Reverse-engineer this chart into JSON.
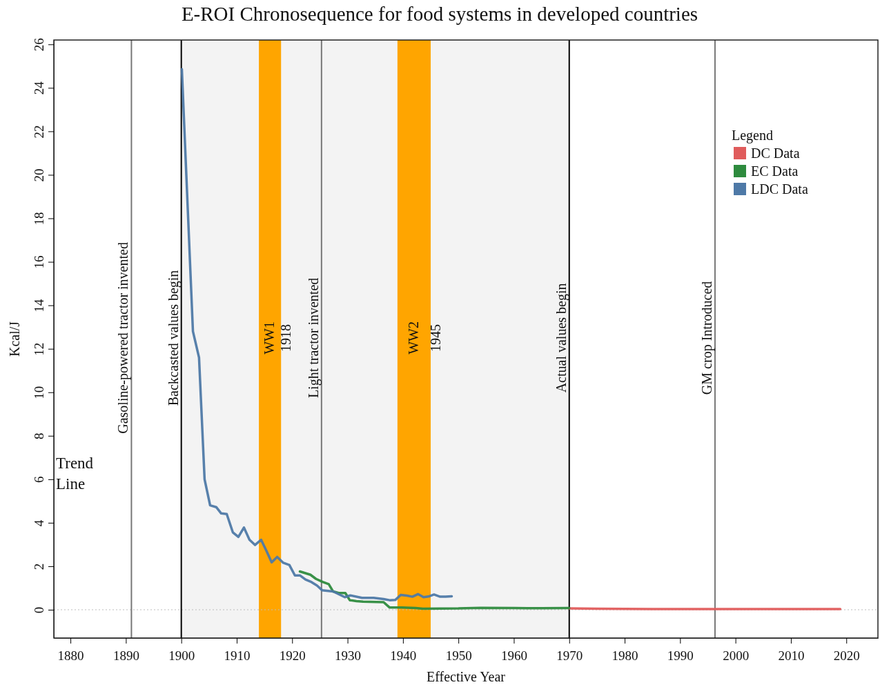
{
  "chart_data": {
    "type": "line",
    "title": "E-ROI Chronosequence for food systems in developed countries",
    "xlabel": "Effective Year",
    "ylabel": "Kcal/J",
    "xlim": [
      1877,
      2025.7
    ],
    "xticks": [
      1880,
      1890,
      1900,
      1910,
      1920,
      1930,
      1940,
      1950,
      1960,
      1970,
      1980,
      1990,
      2000,
      2010,
      2020
    ],
    "ylim": [
      -1.3,
      26.2
    ],
    "yticks": [
      0,
      2,
      4,
      6,
      8,
      10,
      12,
      14,
      16,
      18,
      20,
      22,
      24,
      26
    ],
    "grid": false,
    "legend": "top right",
    "legend_title": "Legend",
    "line_style": "solid",
    "marker": "none",
    "series": [
      {
        "name": "DC Data",
        "color": "#e05c5c",
        "x": [
          1970,
          1975,
          1980,
          1985,
          1990,
          1995,
          2000,
          2005,
          2010,
          2015,
          2018.9
        ],
        "values": [
          0.06,
          0.05,
          0.04,
          0.03,
          0.03,
          0.03,
          0.03,
          0.03,
          0.03,
          0.03,
          0.03
        ]
      },
      {
        "name": "EC Data",
        "color": "#2e8b3e",
        "x": [
          1921.4,
          1923.3,
          1924.3,
          1925.5,
          1926.6,
          1927.4,
          1928.4,
          1929.6,
          1930.4,
          1931.6,
          1932.8,
          1936.5,
          1937.6,
          1939.8,
          1942.3,
          1943.6,
          1950,
          1954,
          1960,
          1965,
          1970
        ],
        "values": [
          1.76,
          1.61,
          1.42,
          1.28,
          1.18,
          0.84,
          0.77,
          0.77,
          0.44,
          0.4,
          0.37,
          0.35,
          0.1,
          0.1,
          0.08,
          0.05,
          0.06,
          0.09,
          0.08,
          0.07,
          0.08
        ]
      },
      {
        "name": "LDC Data",
        "color": "#4e79a7",
        "x": [
          1900.1,
          1902.1,
          1903.2,
          1904.2,
          1905.2,
          1906.3,
          1907.2,
          1908.2,
          1909.3,
          1910.3,
          1911.3,
          1912.3,
          1913.3,
          1914.4,
          1915.4,
          1916.3,
          1917.3,
          1918.4,
          1919.5,
          1920.5,
          1921.4,
          1922.4,
          1923.5,
          1924.5,
          1925.4,
          1927.4,
          1929.5,
          1930.5,
          1932.6,
          1934.7,
          1936.5,
          1937.6,
          1938.6,
          1939.6,
          1940.7,
          1941.7,
          1942.7,
          1943.7,
          1944.6,
          1945.6,
          1946.7,
          1947.7,
          1948.8
        ],
        "values": [
          24.86,
          12.8,
          11.6,
          6.0,
          4.8,
          4.72,
          4.43,
          4.4,
          3.56,
          3.35,
          3.78,
          3.22,
          2.98,
          3.22,
          2.69,
          2.18,
          2.43,
          2.16,
          2.06,
          1.58,
          1.58,
          1.39,
          1.27,
          1.11,
          0.9,
          0.84,
          0.58,
          0.66,
          0.55,
          0.55,
          0.49,
          0.44,
          0.45,
          0.68,
          0.65,
          0.6,
          0.72,
          0.58,
          0.61,
          0.7,
          0.6,
          0.6,
          0.62
        ]
      }
    ],
    "bands": [
      {
        "axis": "x",
        "from": 1900,
        "to": 1970,
        "label": null,
        "color": "#f3f3f3"
      },
      {
        "axis": "x",
        "from": 1914,
        "to": 1918,
        "label": "WW1",
        "color": "#ffa500"
      },
      {
        "axis": "x",
        "from": 1939,
        "to": 1945,
        "label": "WW2",
        "color": "#ffa500"
      }
    ],
    "ref_lines": [
      {
        "axis": "y",
        "value": 0,
        "label": null,
        "color": "#bbbbbb",
        "line_style": "dotted"
      },
      {
        "axis": "x",
        "value": 1891,
        "label": "Gasoline-powered tractor invented",
        "color": "#777777",
        "line_style": "solid"
      },
      {
        "axis": "x",
        "value": 1900,
        "label": "Backcasted values begin",
        "color": "#000000",
        "line_style": "solid"
      },
      {
        "axis": "x",
        "value": 1925.3,
        "label": "Light tractor invented",
        "color": "#777777",
        "line_style": "solid"
      },
      {
        "axis": "x",
        "value": 1970,
        "label": "Actual values begin",
        "color": "#000000",
        "line_style": "solid"
      },
      {
        "axis": "x",
        "value": 1996.3,
        "label": "GM crop Introduced",
        "color": "#777777",
        "line_style": "solid"
      }
    ],
    "annotations": [
      {
        "text": "1918",
        "x": 1918,
        "y": 12.5
      },
      {
        "text": "1945",
        "x": 1945,
        "y": 12.5
      },
      "Trend Line"
    ]
  }
}
